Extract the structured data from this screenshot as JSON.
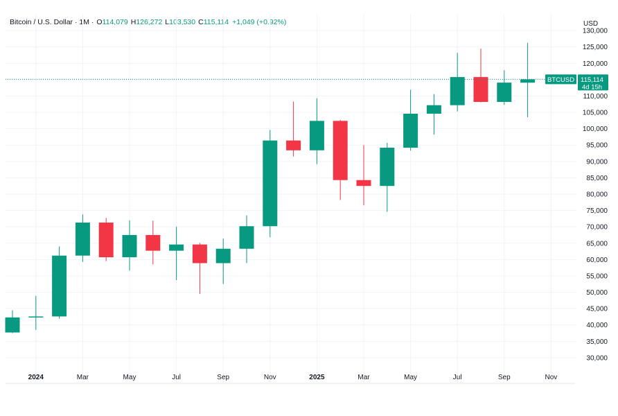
{
  "header": {
    "symbol": "Bitcoin / U.S. Dollar · 1M ·",
    "o_label": "O",
    "o_value": "114,079",
    "h_label": "H",
    "h_value": "126,272",
    "l_label": "L",
    "l_value": "103,530",
    "c_label": "C",
    "c_value": "115,114",
    "change": "+1,049 (+0.92%)"
  },
  "price_axis": {
    "currency": "USD"
  },
  "price_tag": {
    "ticker": "BTCUSD",
    "price": "115,114",
    "countdown": "4d 15h"
  },
  "colors": {
    "up": "#089981",
    "down": "#f23645",
    "grid": "#f0f3fa",
    "axis_text": "#131722"
  },
  "chart_data": {
    "type": "candlestick",
    "symbol": "BTCUSD",
    "timeframe": "1M",
    "currency": "USD",
    "ylim": [
      27000,
      133000
    ],
    "y_ticks": [
      30000,
      35000,
      40000,
      45000,
      50000,
      55000,
      60000,
      65000,
      70000,
      75000,
      80000,
      85000,
      90000,
      95000,
      100000,
      105000,
      110000,
      115000,
      120000,
      125000,
      130000
    ],
    "y_tick_labels": [
      "30,000",
      "35,000",
      "40,000",
      "45,000",
      "50,000",
      "55,000",
      "60,000",
      "65,000",
      "70,000",
      "75,000",
      "80,000",
      "85,000",
      "90,000",
      "95,000",
      "100,000",
      "105,000",
      "110,000",
      "115,000",
      "120,000",
      "125,000",
      "130,000"
    ],
    "x_ticks": [
      {
        "label": "2024",
        "index": 1,
        "bold": true
      },
      {
        "label": "Mar",
        "index": 3,
        "bold": false
      },
      {
        "label": "May",
        "index": 5,
        "bold": false
      },
      {
        "label": "Jul",
        "index": 7,
        "bold": false
      },
      {
        "label": "Sep",
        "index": 9,
        "bold": false
      },
      {
        "label": "Nov",
        "index": 11,
        "bold": false
      },
      {
        "label": "2025",
        "index": 13,
        "bold": true
      },
      {
        "label": "Mar",
        "index": 15,
        "bold": false
      },
      {
        "label": "May",
        "index": 17,
        "bold": false
      },
      {
        "label": "Jul",
        "index": 19,
        "bold": false
      },
      {
        "label": "Sep",
        "index": 21,
        "bold": false
      },
      {
        "label": "Nov",
        "index": 23,
        "bold": false
      }
    ],
    "last_price": 115114,
    "candles": [
      {
        "month": "2023-12",
        "open": 37700,
        "high": 44500,
        "low": 37500,
        "close": 42300
      },
      {
        "month": "2024-01",
        "open": 42300,
        "high": 48900,
        "low": 38500,
        "close": 42600
      },
      {
        "month": "2024-02",
        "open": 42600,
        "high": 64000,
        "low": 41900,
        "close": 61200
      },
      {
        "month": "2024-03",
        "open": 61200,
        "high": 73800,
        "low": 59300,
        "close": 71300
      },
      {
        "month": "2024-04",
        "open": 71300,
        "high": 72700,
        "low": 59500,
        "close": 60700
      },
      {
        "month": "2024-05",
        "open": 60700,
        "high": 72000,
        "low": 56600,
        "close": 67500
      },
      {
        "month": "2024-06",
        "open": 67500,
        "high": 71900,
        "low": 58500,
        "close": 62700
      },
      {
        "month": "2024-07",
        "open": 62700,
        "high": 70000,
        "low": 53700,
        "close": 64600
      },
      {
        "month": "2024-08",
        "open": 64600,
        "high": 65100,
        "low": 49500,
        "close": 58900
      },
      {
        "month": "2024-09",
        "open": 58900,
        "high": 66400,
        "low": 52500,
        "close": 63300
      },
      {
        "month": "2024-10",
        "open": 63300,
        "high": 73500,
        "low": 58900,
        "close": 70200
      },
      {
        "month": "2024-11",
        "open": 70200,
        "high": 99600,
        "low": 66800,
        "close": 96400
      },
      {
        "month": "2024-12",
        "open": 96400,
        "high": 108300,
        "low": 91500,
        "close": 93400
      },
      {
        "month": "2025-01",
        "open": 93400,
        "high": 109300,
        "low": 89200,
        "close": 102400
      },
      {
        "month": "2025-02",
        "open": 102400,
        "high": 102700,
        "low": 78200,
        "close": 84300
      },
      {
        "month": "2025-03",
        "open": 84300,
        "high": 95000,
        "low": 76600,
        "close": 82500
      },
      {
        "month": "2025-04",
        "open": 82500,
        "high": 95700,
        "low": 74600,
        "close": 94200
      },
      {
        "month": "2025-05",
        "open": 94200,
        "high": 111900,
        "low": 93300,
        "close": 104600
      },
      {
        "month": "2025-06",
        "open": 104600,
        "high": 110600,
        "low": 98200,
        "close": 107200
      },
      {
        "month": "2025-07",
        "open": 107200,
        "high": 123200,
        "low": 105300,
        "close": 115800
      },
      {
        "month": "2025-08",
        "open": 115800,
        "high": 124500,
        "low": 108100,
        "close": 108200
      },
      {
        "month": "2025-09",
        "open": 108200,
        "high": 117900,
        "low": 107300,
        "close": 114100
      },
      {
        "month": "2025-10",
        "open": 114079,
        "high": 126272,
        "low": 103530,
        "close": 115114
      }
    ]
  }
}
